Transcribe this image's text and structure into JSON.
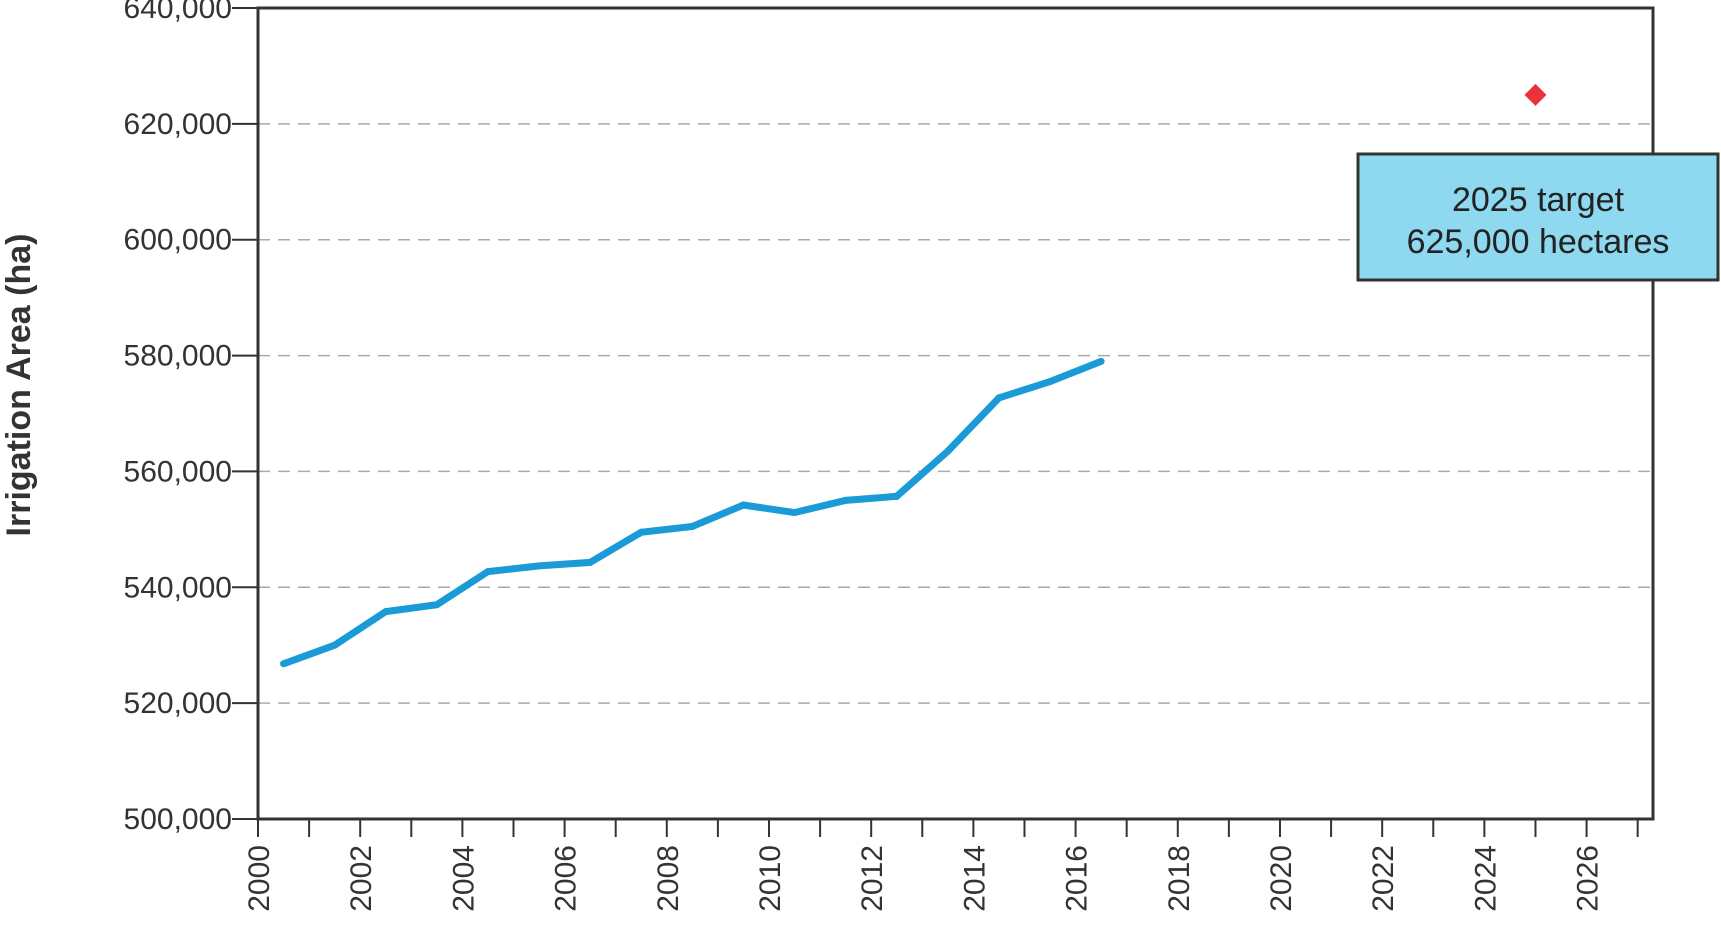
{
  "chart_data": {
    "type": "line",
    "title": "",
    "xlabel": "",
    "ylabel": "Irrigation Area (ha)",
    "xlim": [
      2000,
      2027.3
    ],
    "ylim": [
      500000,
      640000
    ],
    "x_ticks": [
      "2000",
      "2002",
      "2004",
      "2006",
      "2008",
      "2010",
      "2012",
      "2014",
      "2016",
      "2018",
      "2020",
      "2022",
      "2024",
      "2026"
    ],
    "y_ticks": [
      "500,000",
      "520,000",
      "540,000",
      "560,000",
      "580,000",
      "600,000",
      "620,000",
      "640,000"
    ],
    "grid": "horizontal dashed",
    "series": [
      {
        "color": "#1a9ad6",
        "points": [
          [
            2000.5,
            526800
          ],
          [
            2001.5,
            530000
          ],
          [
            2002.5,
            535800
          ],
          [
            2003.5,
            537000
          ],
          [
            2004.5,
            542700
          ],
          [
            2005.5,
            543700
          ],
          [
            2006.5,
            544300
          ],
          [
            2007.5,
            549500
          ],
          [
            2008.5,
            550500
          ],
          [
            2009.5,
            554200
          ],
          [
            2010.5,
            552900
          ],
          [
            2011.5,
            555000
          ],
          [
            2012.5,
            555700
          ],
          [
            2013.5,
            563500
          ],
          [
            2014.5,
            572700
          ],
          [
            2015.5,
            575500
          ],
          [
            2016.5,
            579000
          ]
        ]
      }
    ],
    "target": {
      "x": 2025,
      "y": 625000,
      "color": "#e8333a",
      "marker": "diamond"
    },
    "annotation": {
      "lines": [
        "2025 target",
        "625,000 hectares"
      ],
      "fill": "#8ed8f0",
      "border": "#333333"
    }
  }
}
